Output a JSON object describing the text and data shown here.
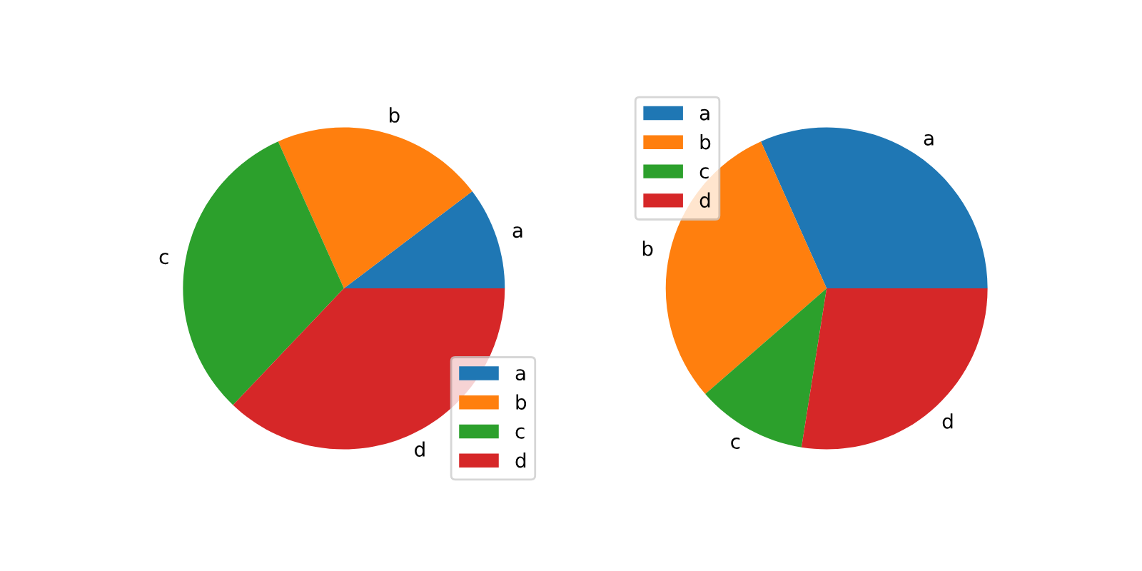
{
  "chart_data": [
    {
      "type": "pie",
      "categories": [
        "a",
        "b",
        "c",
        "d"
      ],
      "values": [
        10.3,
        21.4,
        31.2,
        37.1
      ],
      "colors": [
        "#1f77b4",
        "#ff7f0e",
        "#2ca02c",
        "#d62728"
      ],
      "legend": "bottom right"
    },
    {
      "type": "pie",
      "categories": [
        "a",
        "b",
        "c",
        "d"
      ],
      "values": [
        31.7,
        29.7,
        11.1,
        27.5
      ],
      "colors": [
        "#1f77b4",
        "#ff7f0e",
        "#2ca02c",
        "#d62728"
      ],
      "legend": "top left"
    }
  ]
}
